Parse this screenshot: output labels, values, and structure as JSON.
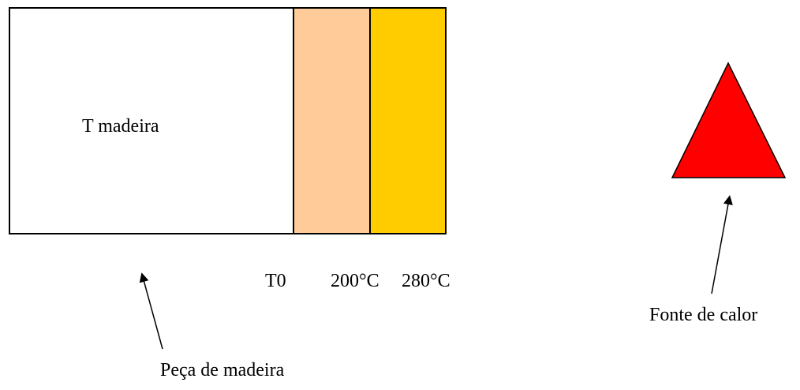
{
  "wood_block": {
    "inner_label": "T madeira",
    "zones": [
      {
        "name": "wood",
        "color": "#ffffff"
      },
      {
        "name": "zone-200",
        "color": "#ffcc99"
      },
      {
        "name": "zone-280",
        "color": "#ffcc00"
      }
    ]
  },
  "temperature_labels": {
    "t0": "T0",
    "t200": "200°C",
    "t280": "280°C"
  },
  "wood_piece_label": "Peça de madeira",
  "heat_source": {
    "label": "Fonte de calor",
    "color": "#ff0000",
    "shape": "triangle"
  },
  "outline_color": "#000000"
}
